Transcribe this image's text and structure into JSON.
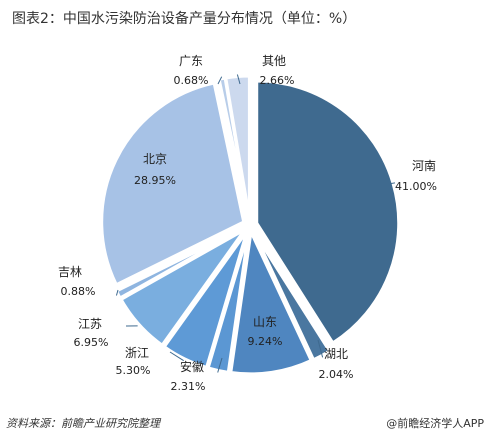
{
  "title": "图表2：中国水污染防治设备产量分布情况（单位：%）",
  "source": "资料来源：前瞻产业研究院整理",
  "brand": "@前瞻经济学人APP",
  "chart_data": {
    "type": "pie",
    "title": "图表2：中国水污染防治设备产量分布情况（单位：%）",
    "unit": "%",
    "slices": [
      {
        "name": "河南",
        "value": 41.0,
        "label": "41.00%",
        "color": "#3f6a8f"
      },
      {
        "name": "湖北",
        "value": 2.04,
        "label": "2.04%",
        "color": "#4a77a0"
      },
      {
        "name": "山东",
        "value": 9.24,
        "label": "9.24%",
        "color": "#4f86c0"
      },
      {
        "name": "安徽",
        "value": 2.31,
        "label": "2.31%",
        "color": "#5b97d3"
      },
      {
        "name": "浙江",
        "value": 5.3,
        "label": "5.30%",
        "color": "#5e9ad6"
      },
      {
        "name": "江苏",
        "value": 6.95,
        "label": "6.95%",
        "color": "#7aaedf"
      },
      {
        "name": "吉林",
        "value": 0.88,
        "label": "0.88%",
        "color": "#8fb5e0"
      },
      {
        "name": "北京",
        "value": 28.95,
        "label": "28.95%",
        "color": "#a7c2e6"
      },
      {
        "name": "广东",
        "value": 0.68,
        "label": "0.68%",
        "color": "#b8cde9"
      },
      {
        "name": "其他",
        "value": 2.66,
        "label": "2.66%",
        "color": "#ccd9ee"
      }
    ]
  }
}
